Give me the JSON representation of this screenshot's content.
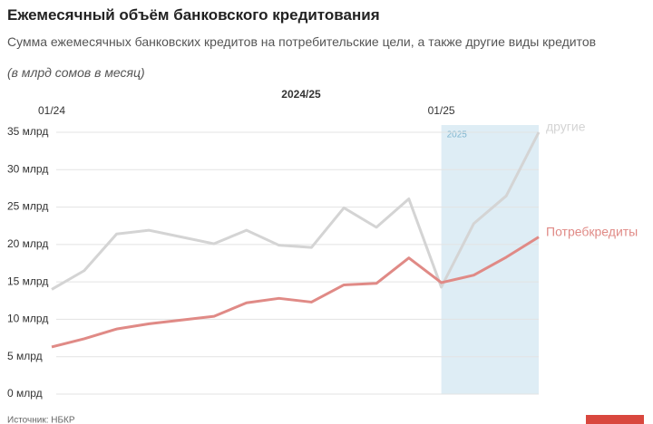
{
  "chart_data": {
    "type": "line",
    "title": "Ежемесячный объём банковского кредитования",
    "subtitle": "Сумма ежемесячных банковских кредитов на потребительские цели, а также другие виды кредитов",
    "note": "(в млрд сомов в месяц)",
    "x_label": "2024/25",
    "highlight_label": "2025",
    "source": "Источник: НБКР",
    "categories": [
      "01/24",
      null,
      null,
      null,
      null,
      null,
      null,
      null,
      null,
      null,
      null,
      null,
      "01/25",
      null,
      null,
      null
    ],
    "series": [
      {
        "name": "другие",
        "color": "#d4d4d4",
        "values": [
          14.0,
          16.5,
          21.4,
          21.9,
          21.0,
          20.1,
          21.9,
          19.9,
          19.6,
          24.9,
          22.3,
          26.1,
          14.3,
          22.8,
          26.5,
          35.0
        ]
      },
      {
        "name": "Потребкредиты",
        "color": "#e08a86",
        "values": [
          6.3,
          7.4,
          8.7,
          9.4,
          9.9,
          10.4,
          12.2,
          12.8,
          12.3,
          14.6,
          14.8,
          18.2,
          14.9,
          15.9,
          18.3,
          21.0
        ]
      }
    ],
    "ylim": [
      0,
      35
    ],
    "yticks": [
      {
        "value": 0,
        "label": "0 млрд"
      },
      {
        "value": 5,
        "label": "5 млрд"
      },
      {
        "value": 10,
        "label": "10 млрд"
      },
      {
        "value": 15,
        "label": "15 млрд"
      },
      {
        "value": 20,
        "label": "20 млрд"
      },
      {
        "value": 25,
        "label": "25 млрд"
      },
      {
        "value": 30,
        "label": "30 млрд"
      },
      {
        "value": 35,
        "label": "35 млрд"
      }
    ],
    "grid": true
  }
}
